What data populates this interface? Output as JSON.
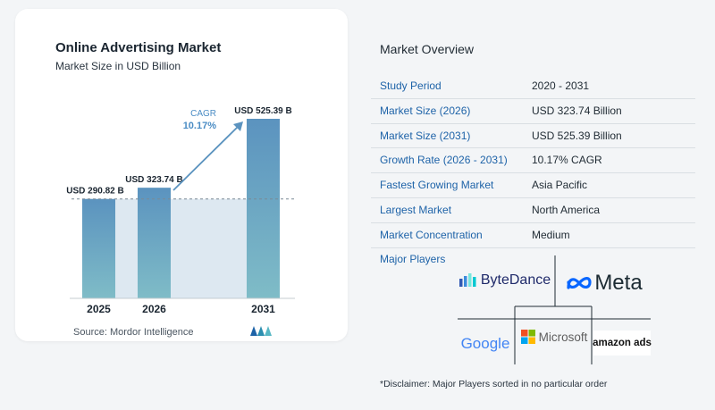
{
  "chart": {
    "title": "Online Advertising Market",
    "subtitle": "Market Size in USD Billion",
    "source": "Source:  Mordor Intelligence",
    "cagr_label": "CAGR",
    "cagr_value": "10.17%"
  },
  "chart_data": {
    "type": "bar",
    "title": "Online Advertising Market",
    "subtitle": "Market Size in USD Billion",
    "categories": [
      "2025",
      "2026",
      "2031"
    ],
    "values": [
      290.82,
      323.74,
      525.39
    ],
    "data_labels": [
      "USD 290.82 B",
      "USD 323.74 B",
      "USD 525.39 B"
    ],
    "ylim": [
      0,
      525.39
    ],
    "xlabel": "",
    "ylabel": "",
    "grid": false,
    "annotation": {
      "label": "CAGR",
      "value": "10.17%"
    },
    "colors": {
      "bar_top": "#5b93bf",
      "bar_bottom": "#7fbcc7",
      "shade": "#dde8f1",
      "arrow": "#5b93bf",
      "cagr": "#4a8cc4"
    }
  },
  "overview": {
    "title": "Market Overview",
    "rows": [
      {
        "label": "Study Period",
        "value": "2020 - 2031"
      },
      {
        "label": "Market Size (2026)",
        "value": "USD 323.74 Billion"
      },
      {
        "label": "Market Size (2031)",
        "value": "USD 525.39 Billion"
      },
      {
        "label": "Growth Rate (2026 - 2031)",
        "value": "10.17% CAGR"
      },
      {
        "label": "Fastest Growing Market",
        "value": "Asia Pacific"
      },
      {
        "label": "Largest Market",
        "value": "North America"
      },
      {
        "label": "Market Concentration",
        "value": "Medium"
      }
    ]
  },
  "players": {
    "title": "Major Players",
    "logos": {
      "bytedance": "ByteDance",
      "meta": "Meta",
      "google": "Google",
      "microsoft": "Microsoft",
      "amazon": "amazon ads"
    }
  },
  "disclaimer": "*Disclaimer: Major Players sorted in no particular order"
}
